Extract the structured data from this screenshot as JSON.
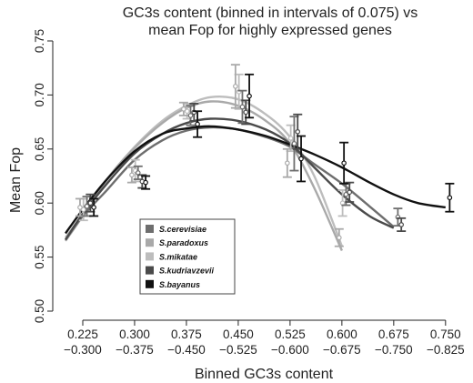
{
  "chart_data": {
    "type": "line",
    "title_lines": [
      "GC3s content (binned in intervals of 0.075) vs",
      "mean Fop for highly expressed genes"
    ],
    "xlabel": "Binned GC3s content",
    "ylabel": "Mean Fop",
    "x_tick_labels_top": [
      "0.225",
      "0.300",
      "0.375",
      "0.450",
      "0.525",
      "0.600",
      "0.675",
      "0.750"
    ],
    "x_tick_labels_bottom": [
      "−0.300",
      "−0.375",
      "−0.450",
      "−0.525",
      "−0.600",
      "−0.675",
      "−0.750",
      "−0.825"
    ],
    "x_ticks": [
      0.225,
      0.3,
      0.375,
      0.45,
      0.525,
      0.6,
      0.675,
      0.75
    ],
    "xlim": [
      0.2,
      0.77
    ],
    "y_ticks": [
      0.5,
      0.55,
      0.6,
      0.65,
      0.7,
      0.75
    ],
    "y_tick_labels": [
      "0.50",
      "0.55",
      "0.60",
      "0.65",
      "0.70",
      "0.75"
    ],
    "ylim": [
      0.5,
      0.75
    ],
    "legend_position": "lower-left",
    "series": [
      {
        "name": "S.cerevisiae",
        "color": "#6e6e6e",
        "curve_x": [
          0.2,
          0.225,
          0.26,
          0.3,
          0.34,
          0.375,
          0.41,
          0.45,
          0.49,
          0.525,
          0.56,
          0.6,
          0.64,
          0.675
        ],
        "curve_y": [
          0.566,
          0.588,
          0.612,
          0.64,
          0.658,
          0.667,
          0.67,
          0.668,
          0.661,
          0.652,
          0.636,
          0.618,
          0.597,
          0.578
        ],
        "points": [
          {
            "x": 0.231,
            "y": 0.597,
            "err": 0.009
          },
          {
            "x": 0.305,
            "y": 0.628,
            "err": 0.006
          },
          {
            "x": 0.381,
            "y": 0.681,
            "err": 0.009
          },
          {
            "x": 0.456,
            "y": 0.689,
            "err": 0.015
          },
          {
            "x": 0.531,
            "y": 0.655,
            "err": 0.025
          },
          {
            "x": 0.606,
            "y": 0.608,
            "err": 0.01
          },
          {
            "x": 0.681,
            "y": 0.587,
            "err": 0.008
          }
        ]
      },
      {
        "name": "S.paradoxus",
        "color": "#a9a9a9",
        "curve_x": [
          0.2,
          0.225,
          0.26,
          0.3,
          0.34,
          0.375,
          0.41,
          0.45,
          0.49,
          0.525,
          0.56,
          0.6
        ],
        "curve_y": [
          0.565,
          0.588,
          0.622,
          0.651,
          0.674,
          0.688,
          0.694,
          0.69,
          0.676,
          0.655,
          0.614,
          0.556
        ],
        "points": [
          {
            "x": 0.221,
            "y": 0.596,
            "err": 0.008
          },
          {
            "x": 0.296,
            "y": 0.626,
            "err": 0.007
          },
          {
            "x": 0.371,
            "y": 0.687,
            "err": 0.006
          },
          {
            "x": 0.446,
            "y": 0.708,
            "err": 0.02
          },
          {
            "x": 0.521,
            "y": 0.637,
            "err": 0.013
          },
          {
            "x": 0.596,
            "y": 0.568,
            "err": 0.008
          }
        ]
      },
      {
        "name": "S.mikatae",
        "color": "#bdbdbd",
        "curve_x": [
          0.2,
          0.225,
          0.26,
          0.3,
          0.34,
          0.375,
          0.41,
          0.45,
          0.49,
          0.525,
          0.56,
          0.6
        ],
        "curve_y": [
          0.568,
          0.59,
          0.622,
          0.652,
          0.676,
          0.69,
          0.698,
          0.696,
          0.682,
          0.661,
          0.625,
          0.56
        ],
        "points": [
          {
            "x": 0.226,
            "y": 0.594,
            "err": 0.01
          },
          {
            "x": 0.301,
            "y": 0.63,
            "err": 0.01
          },
          {
            "x": 0.376,
            "y": 0.685,
            "err": 0.007
          },
          {
            "x": 0.451,
            "y": 0.703,
            "err": 0.016
          },
          {
            "x": 0.526,
            "y": 0.66,
            "err": 0.012
          },
          {
            "x": 0.601,
            "y": 0.6,
            "err": 0.012
          }
        ]
      },
      {
        "name": "S.kudriavzevii",
        "color": "#4a4a4a",
        "curve_x": [
          0.2,
          0.225,
          0.26,
          0.3,
          0.34,
          0.375,
          0.41,
          0.45,
          0.49,
          0.525,
          0.56,
          0.6,
          0.64,
          0.675
        ],
        "curve_y": [
          0.566,
          0.59,
          0.618,
          0.646,
          0.664,
          0.674,
          0.678,
          0.676,
          0.668,
          0.655,
          0.633,
          0.608,
          0.588,
          0.577
        ],
        "points": [
          {
            "x": 0.236,
            "y": 0.6,
            "err": 0.008
          },
          {
            "x": 0.311,
            "y": 0.62,
            "err": 0.006
          },
          {
            "x": 0.386,
            "y": 0.684,
            "err": 0.008
          },
          {
            "x": 0.461,
            "y": 0.684,
            "err": 0.011
          },
          {
            "x": 0.536,
            "y": 0.666,
            "err": 0.016
          },
          {
            "x": 0.611,
            "y": 0.61,
            "err": 0.009
          },
          {
            "x": 0.686,
            "y": 0.58,
            "err": 0.006
          }
        ]
      },
      {
        "name": "S.bayanus",
        "color": "#111111",
        "curve_x": [
          0.2,
          0.225,
          0.26,
          0.3,
          0.34,
          0.375,
          0.41,
          0.45,
          0.49,
          0.525,
          0.56,
          0.6,
          0.64,
          0.675,
          0.71,
          0.75
        ],
        "curve_y": [
          0.572,
          0.594,
          0.622,
          0.648,
          0.664,
          0.669,
          0.671,
          0.668,
          0.662,
          0.654,
          0.645,
          0.633,
          0.619,
          0.608,
          0.6,
          0.596
        ],
        "points": [
          {
            "x": 0.241,
            "y": 0.596,
            "err": 0.008
          },
          {
            "x": 0.316,
            "y": 0.619,
            "err": 0.006
          },
          {
            "x": 0.391,
            "y": 0.673,
            "err": 0.012
          },
          {
            "x": 0.466,
            "y": 0.699,
            "err": 0.02
          },
          {
            "x": 0.541,
            "y": 0.641,
            "err": 0.021
          },
          {
            "x": 0.603,
            "y": 0.637,
            "err": 0.019
          },
          {
            "x": 0.756,
            "y": 0.605,
            "err": 0.013
          }
        ]
      }
    ]
  }
}
